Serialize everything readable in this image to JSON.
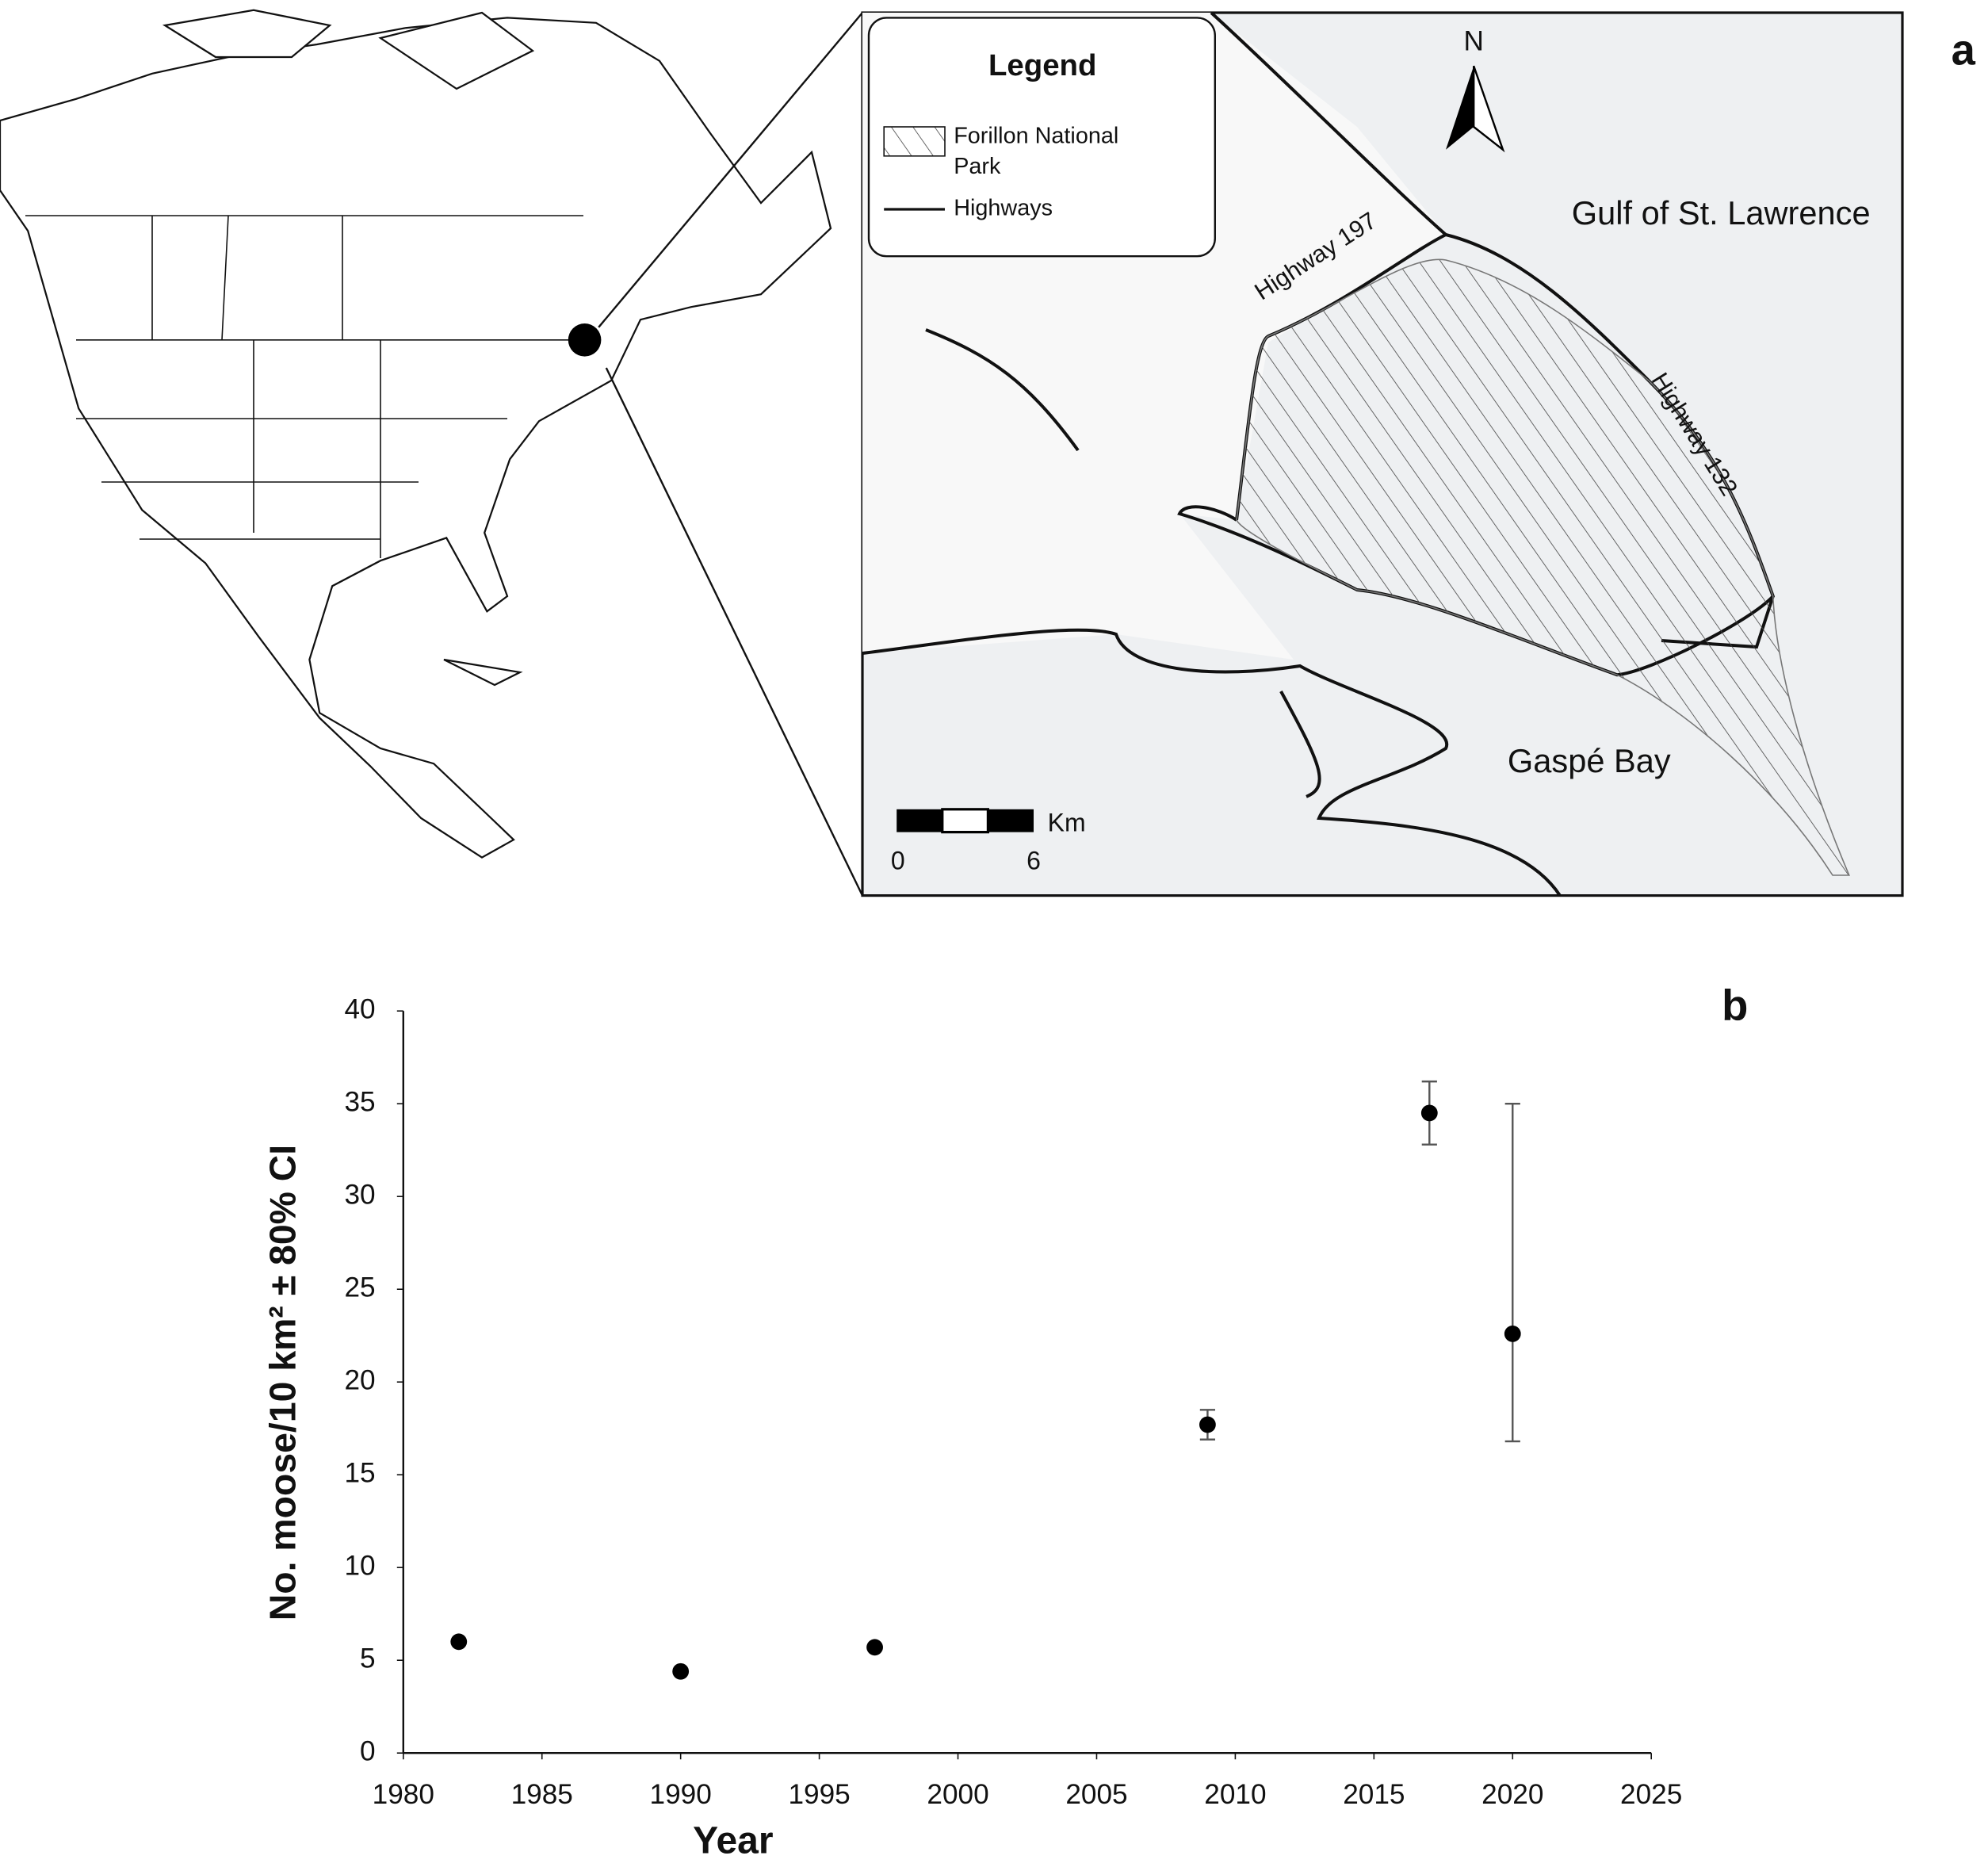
{
  "map": {
    "panel_label": "a",
    "legend_title": "Legend",
    "park_label_lines": [
      "Forillon National",
      "Park"
    ],
    "highways_label": "Highways",
    "north": "N",
    "gulf": "Gulf of St. Lawrence",
    "highway_197": "Highway 197",
    "highway_132": "Highway 132",
    "bay": "Gaspé Bay",
    "scale_unit": "Km",
    "scale_start": "0",
    "scale_end": "6"
  },
  "chart_data": {
    "type": "scatter",
    "panel_label": "b",
    "x_label": "Year",
    "y_label": "No. moose/10 km² ± 80% CI",
    "x": [
      1982,
      1990,
      1997,
      2009,
      2017,
      2020
    ],
    "series": [
      {
        "color": "#000000",
        "values": [
          6.0,
          4.4,
          5.7,
          17.7,
          34.5,
          22.6
        ],
        "lower": [
          null,
          null,
          null,
          16.9,
          32.8,
          16.8
        ],
        "upper": [
          null,
          null,
          null,
          18.5,
          36.2,
          35.0
        ]
      }
    ],
    "xlim": [
      1980,
      2025
    ],
    "xticks": [
      1980,
      1985,
      1990,
      1995,
      2000,
      2005,
      2010,
      2015,
      2020,
      2025
    ],
    "ylim": [
      0,
      40
    ],
    "yticks": [
      0,
      5,
      10,
      15,
      20,
      25,
      30,
      35,
      40
    ],
    "grid": false
  }
}
